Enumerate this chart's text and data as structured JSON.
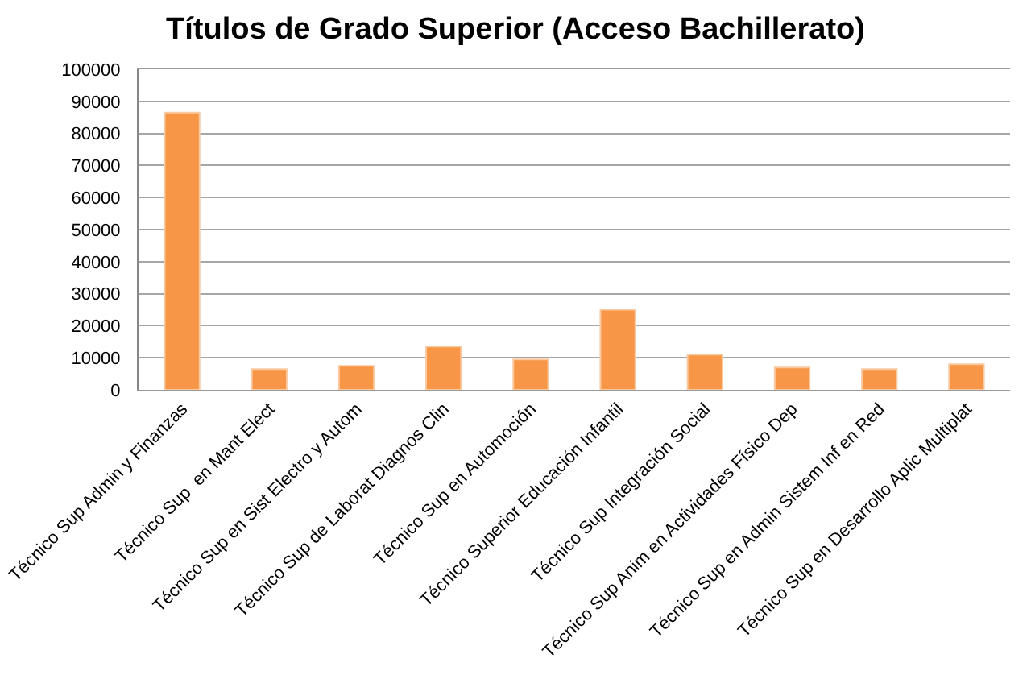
{
  "chart_data": {
    "type": "bar",
    "title": "Títulos de Grado Superior (Acceso Bachillerato)",
    "categories": [
      "Técnico Sup Admin y Finanzas",
      "Técnico Sup  en Mant Elect",
      "Técnico Sup en Sist Electro y Autom",
      "Técnico Sup de Laborat Diagnos Clin",
      "Técnico Sup en Automoción",
      "Técnico Superior Educación Infantil",
      "Técnico Sup Integración Social",
      "Técnico Sup Anim en Actividades Físico Dep",
      "Técnico Sup en Admin Sistem Inf en Red",
      "Técnico Sup en Desarrollo Aplic Multiplat"
    ],
    "values": [
      86500,
      6500,
      7500,
      13500,
      9500,
      25000,
      11000,
      7000,
      6500,
      8000
    ],
    "color": "#f79646",
    "ylim": [
      0,
      100000
    ],
    "yticks": [
      0,
      10000,
      20000,
      30000,
      40000,
      50000,
      60000,
      70000,
      80000,
      90000,
      100000
    ],
    "grid": "y"
  }
}
